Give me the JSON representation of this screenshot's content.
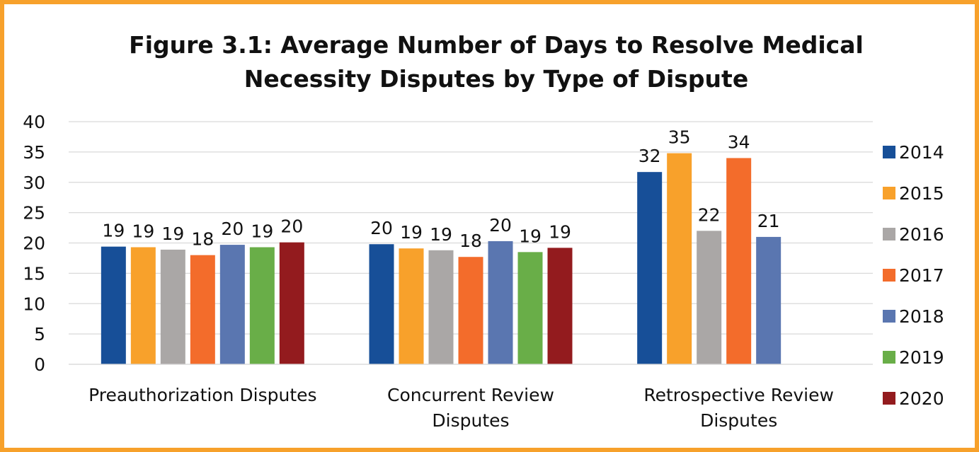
{
  "chart_data": {
    "type": "bar",
    "title": "Figure 3.1: Average Number of Days to Resolve Medical Necessity Disputes by Type of Dispute",
    "categories": [
      "Preauthorization Disputes",
      "Concurrent Review Disputes",
      "Retrospective Review Disputes"
    ],
    "series": [
      {
        "name": "2014",
        "color": "#174f98",
        "values": [
          19.4,
          19.8,
          31.7
        ],
        "value_labels": [
          "19",
          "20",
          "32"
        ]
      },
      {
        "name": "2015",
        "color": "#f8a12b",
        "values": [
          19.3,
          19.1,
          34.8
        ],
        "value_labels": [
          "19",
          "19",
          "35"
        ]
      },
      {
        "name": "2016",
        "color": "#aaa7a6",
        "values": [
          18.9,
          18.8,
          22.0
        ],
        "value_labels": [
          "19",
          "19",
          "22"
        ]
      },
      {
        "name": "2017",
        "color": "#f36c2b",
        "values": [
          18.0,
          17.7,
          34.0
        ],
        "value_labels": [
          "18",
          "18",
          "34"
        ]
      },
      {
        "name": "2018",
        "color": "#5a76b0",
        "values": [
          19.7,
          20.3,
          21.0
        ],
        "value_labels": [
          "20",
          "20",
          "21"
        ]
      },
      {
        "name": "2019",
        "color": "#69ae48",
        "values": [
          19.3,
          18.5,
          null
        ],
        "value_labels": [
          "19",
          "19",
          null
        ]
      },
      {
        "name": "2020",
        "color": "#931b1e",
        "values": [
          20.1,
          19.2,
          null
        ],
        "value_labels": [
          "20",
          "19",
          null
        ]
      }
    ],
    "ylim": [
      0,
      40
    ],
    "yticks": [
      0,
      5,
      10,
      15,
      20,
      25,
      30,
      35,
      40
    ],
    "grid": true,
    "legend": "right"
  }
}
